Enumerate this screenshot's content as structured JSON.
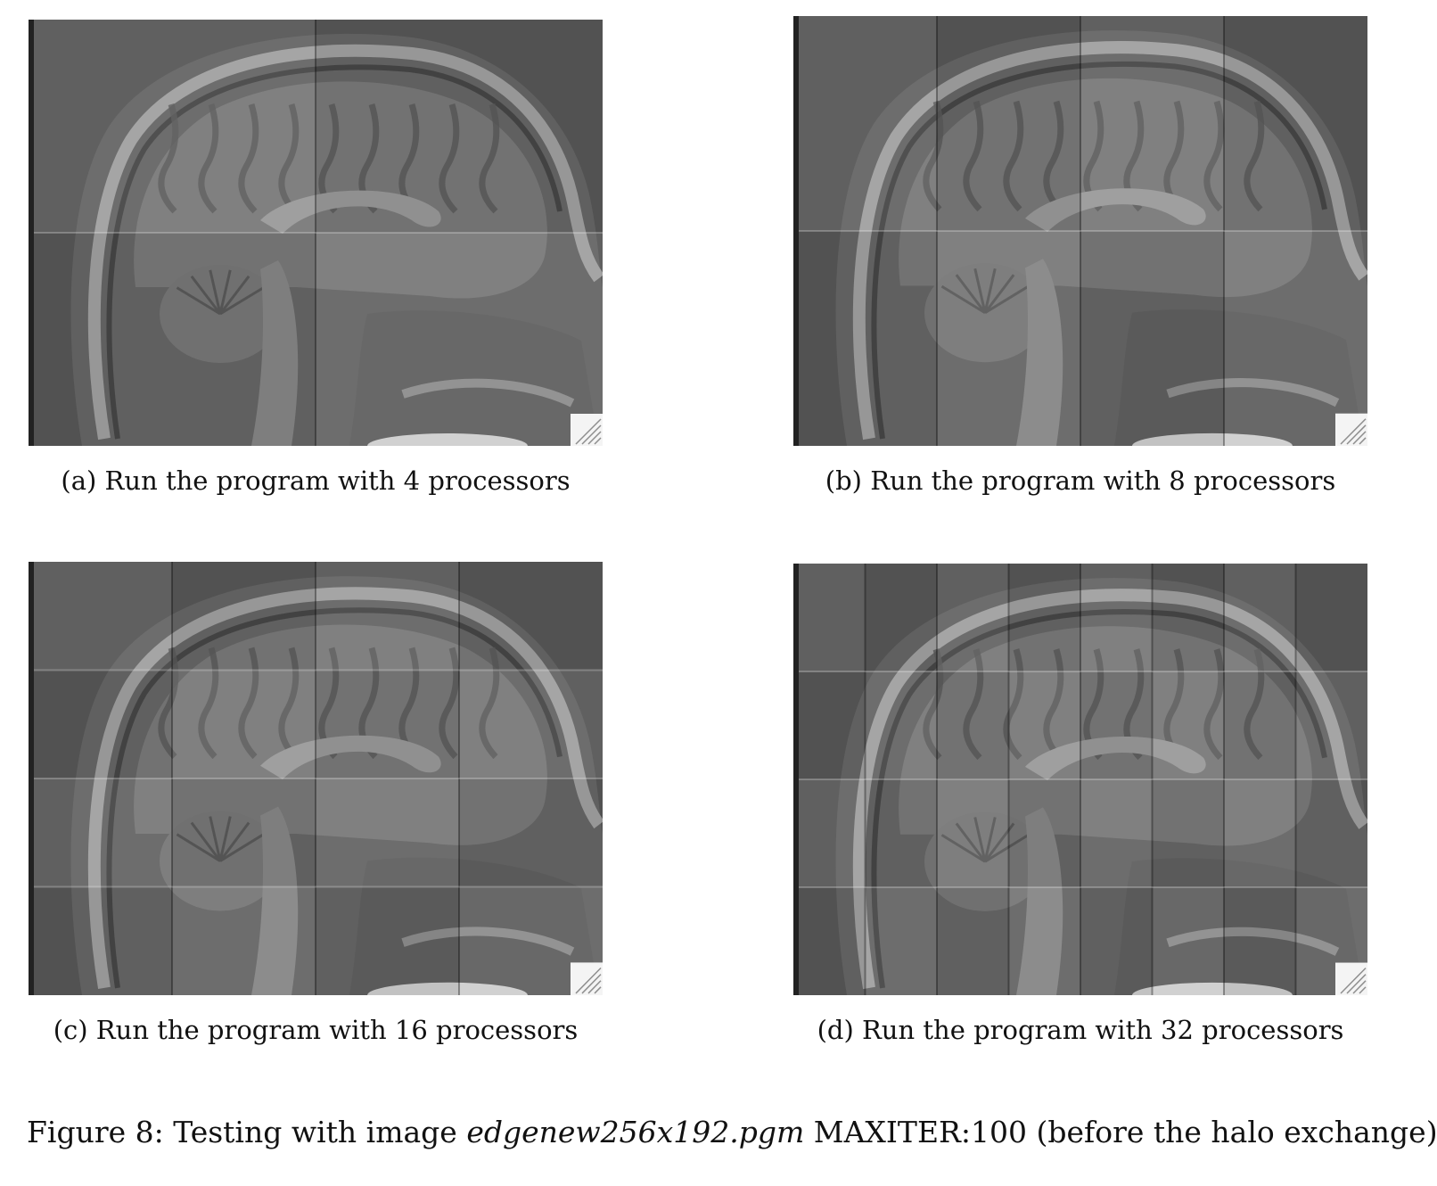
{
  "figure": {
    "label": "Figure 8:",
    "text_before": "Testing with image",
    "filename": "edgenew256x192.pgm",
    "text_after": "MAXITER:100 (before the halo exchange)"
  },
  "panels": [
    {
      "id": "a",
      "caption": "(a) Run the program with 4 processors",
      "cols": 2,
      "rows": 2
    },
    {
      "id": "b",
      "caption": "(b) Run the program with 8 processors",
      "cols": 4,
      "rows": 2
    },
    {
      "id": "c",
      "caption": "(c) Run the program with 16 processors",
      "cols": 4,
      "rows": 4
    },
    {
      "id": "d",
      "caption": "(d) Run the program with 32 processors",
      "cols": 8,
      "rows": 4
    }
  ],
  "colors": {
    "background": "#585858",
    "tissue": "#7a7a7a",
    "bone": "#b0b0b0",
    "dark": "#3a3a3a"
  }
}
